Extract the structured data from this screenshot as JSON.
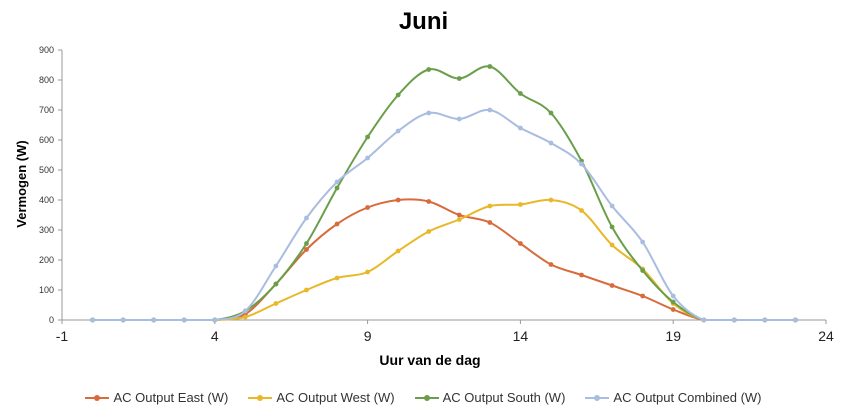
{
  "chart_data": {
    "type": "line",
    "title": "Juni",
    "xlabel": "Uur van de dag",
    "ylabel": "Vermogen (W)",
    "xlim": [
      -1,
      24
    ],
    "ylim": [
      0,
      900
    ],
    "xticks": [
      -1,
      4,
      9,
      14,
      19,
      24
    ],
    "yticks": [
      0,
      100,
      200,
      300,
      400,
      500,
      600,
      700,
      800,
      900
    ],
    "x_grid": false,
    "y_grid": false,
    "legend_position": "bottom",
    "series": [
      {
        "name": "AC Output East (W)",
        "color": "#d86b3c",
        "x": [
          0,
          1,
          2,
          3,
          4,
          5,
          6,
          7,
          8,
          9,
          10,
          11,
          12,
          13,
          14,
          15,
          16,
          17,
          18,
          19,
          20,
          21,
          22,
          23
        ],
        "values": [
          0,
          0,
          0,
          0,
          0,
          20,
          120,
          235,
          320,
          375,
          400,
          395,
          350,
          325,
          255,
          185,
          150,
          115,
          80,
          35,
          0,
          0,
          0,
          0
        ]
      },
      {
        "name": "AC Output West (W)",
        "color": "#e8b82a",
        "x": [
          0,
          1,
          2,
          3,
          4,
          5,
          6,
          7,
          8,
          9,
          10,
          11,
          12,
          13,
          14,
          15,
          16,
          17,
          18,
          19,
          20,
          21,
          22,
          23
        ],
        "values": [
          0,
          0,
          0,
          0,
          0,
          10,
          55,
          100,
          140,
          160,
          230,
          295,
          335,
          380,
          385,
          400,
          365,
          250,
          170,
          55,
          0,
          0,
          0,
          0
        ]
      },
      {
        "name": "AC Output South (W)",
        "color": "#6a9e4a",
        "x": [
          0,
          1,
          2,
          3,
          4,
          5,
          6,
          7,
          8,
          9,
          10,
          11,
          12,
          13,
          14,
          15,
          16,
          17,
          18,
          19,
          20,
          21,
          22,
          23
        ],
        "values": [
          0,
          0,
          0,
          0,
          0,
          30,
          120,
          255,
          440,
          610,
          750,
          835,
          805,
          845,
          755,
          690,
          530,
          310,
          165,
          60,
          0,
          0,
          0,
          0
        ]
      },
      {
        "name": "AC Output Combined (W)",
        "color": "#a9bde0",
        "x": [
          0,
          1,
          2,
          3,
          4,
          5,
          6,
          7,
          8,
          9,
          10,
          11,
          12,
          13,
          14,
          15,
          16,
          17,
          18,
          19,
          20,
          21,
          22,
          23
        ],
        "values": [
          0,
          0,
          0,
          0,
          0,
          30,
          180,
          340,
          460,
          540,
          630,
          690,
          670,
          700,
          640,
          590,
          520,
          380,
          260,
          80,
          0,
          0,
          0,
          0
        ]
      }
    ]
  }
}
